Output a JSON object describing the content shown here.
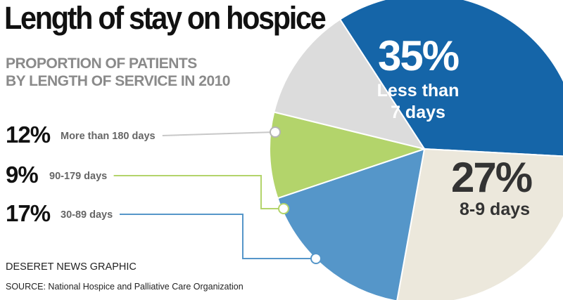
{
  "title": "Length of stay on hospice",
  "subtitle_line1": "PROPORTION OF PATIENTS",
  "subtitle_line2": "BY LENGTH OF SERVICE IN 2010",
  "credit": "DESERET NEWS GRAPHIC",
  "source": "SOURCE: National Hospice and Palliative Care Organization",
  "colors": {
    "less_than_7": "#1565a8",
    "8_9": "#ece8dc",
    "30_89": "#5596c9",
    "90_179": "#b3d46b",
    "more_than_180": "#dcdcdc"
  },
  "chart_data": {
    "type": "pie",
    "title": "Length of stay on hospice",
    "subtitle": "PROPORTION OF PATIENTS BY LENGTH OF SERVICE IN 2010",
    "slices": [
      {
        "label": "Less than 7 days",
        "label_line1": "Less than",
        "label_line2": "7 days",
        "value": 35,
        "display": "35%",
        "color": "#1565a8"
      },
      {
        "label": "8-9 days",
        "value": 27,
        "display": "27%",
        "color": "#ece8dc"
      },
      {
        "label": "30-89 days",
        "value": 17,
        "display": "17%",
        "color": "#5596c9"
      },
      {
        "label": "90-179 days",
        "value": 9,
        "display": "9%",
        "color": "#b3d46b"
      },
      {
        "label": "More than 180 days",
        "value": 12,
        "display": "12%",
        "color": "#dcdcdc"
      }
    ]
  }
}
